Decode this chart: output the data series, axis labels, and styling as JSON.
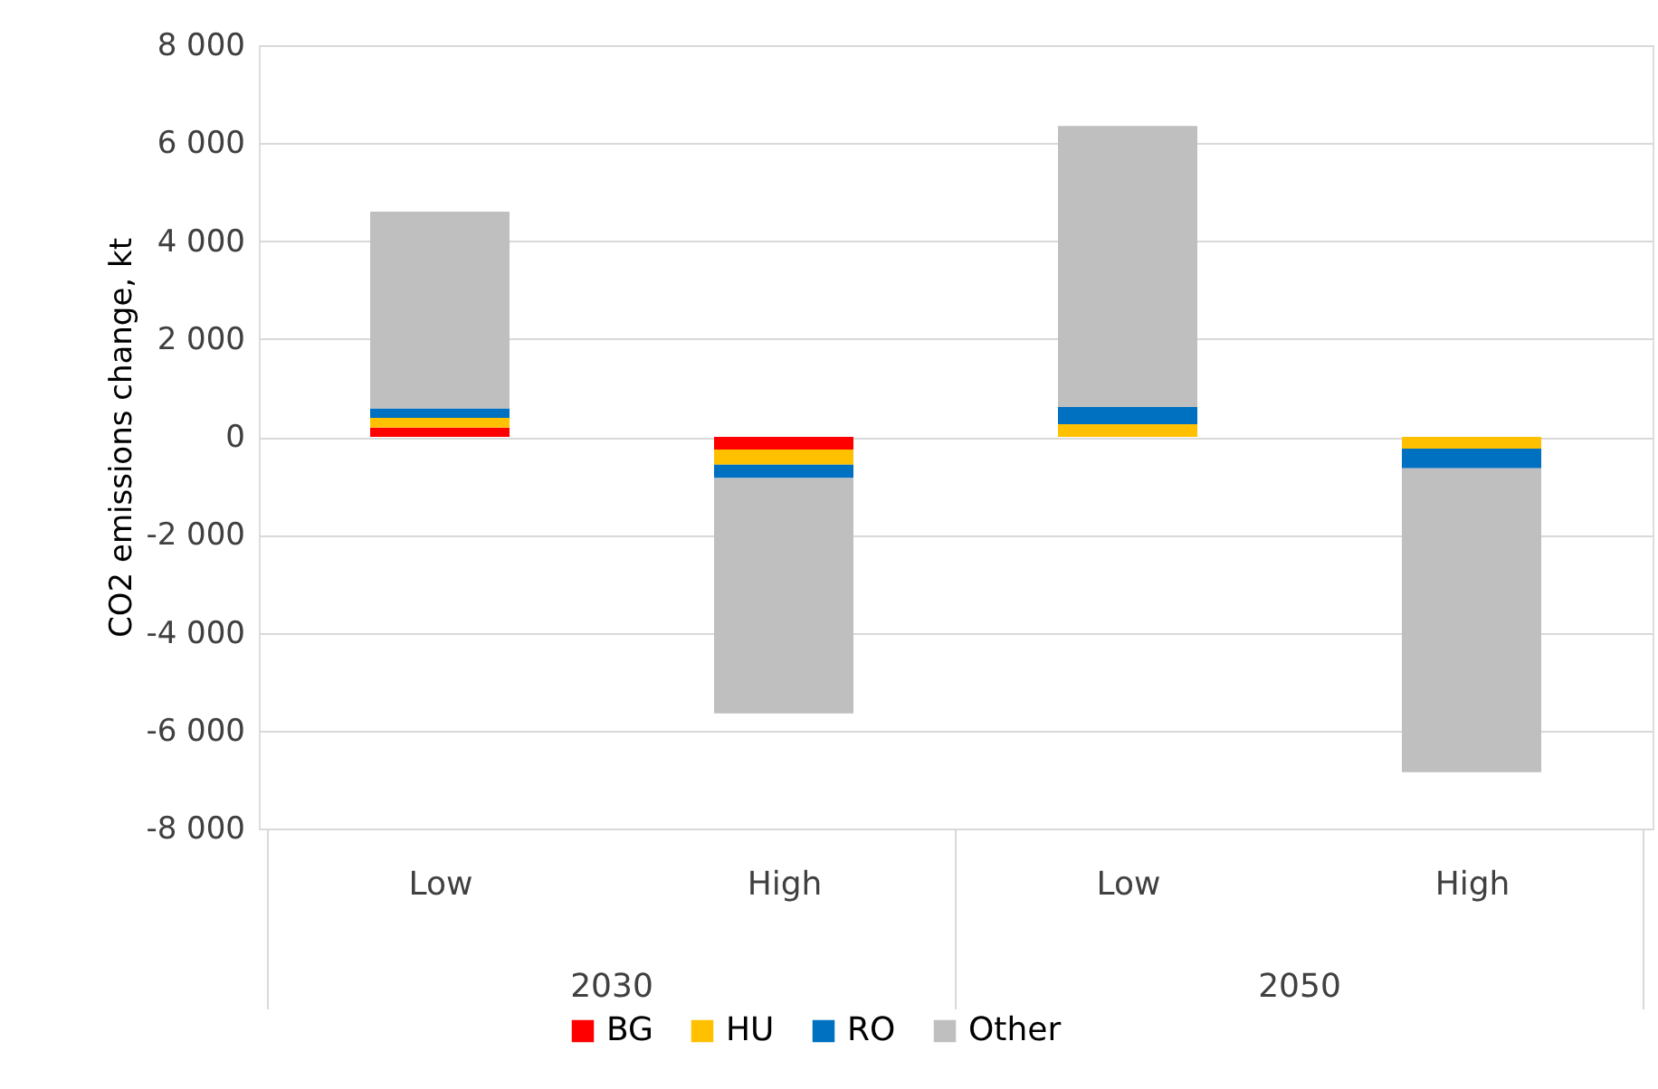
{
  "chart_data": {
    "type": "bar",
    "stacked": true,
    "ylabel": "CO2 emissions change, kt",
    "categories": [
      "Low",
      "High",
      "Low",
      "High"
    ],
    "annotations": [
      "2030",
      "2050"
    ],
    "series": [
      {
        "name": "BG",
        "color": "#ff0000",
        "values": [
          190,
          -260,
          0,
          0
        ]
      },
      {
        "name": "HU",
        "color": "#ffc000",
        "values": [
          200,
          -310,
          260,
          -240
        ]
      },
      {
        "name": "RO",
        "color": "#0070c0",
        "values": [
          190,
          -270,
          350,
          -400
        ]
      },
      {
        "name": "Other",
        "color": "#bfbfbf",
        "values": [
          4020,
          -4810,
          5740,
          -6210
        ]
      }
    ],
    "ylim": [
      -8000,
      8000
    ],
    "yticks": [
      {
        "value": -8000,
        "label": "-8 000"
      },
      {
        "value": -6000,
        "label": "-6 000"
      },
      {
        "value": -4000,
        "label": "-4 000"
      },
      {
        "value": -2000,
        "label": "-2 000"
      },
      0,
      {
        "value": 2000,
        "label": "2 000"
      },
      {
        "value": 4000,
        "label": "4 000"
      },
      {
        "value": 6000,
        "label": "6 000"
      },
      {
        "value": 8000,
        "label": "8 000"
      }
    ],
    "grid": "y",
    "legend": "bottom"
  }
}
